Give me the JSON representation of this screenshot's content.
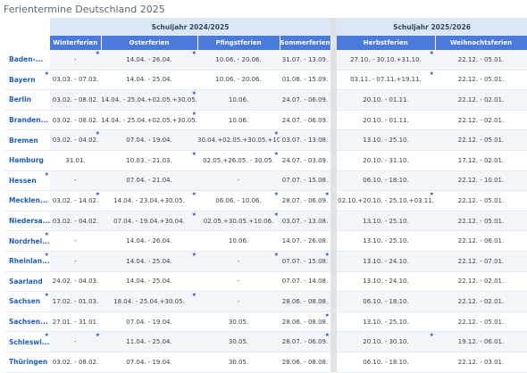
{
  "title": "Ferientermine Deutschland 2025",
  "years": [
    "Schuljahr 2024/2025",
    "Schuljahr 2025/2026"
  ],
  "columns": [
    "Winterferien",
    "Osterferien",
    "Pfingstferien",
    "Sommerferien",
    "Herbstferien",
    "Weihnachtsferien"
  ],
  "rows": [
    {
      "state": "Baden-...",
      "cells": [
        "-",
        "14.04. - 26.04.",
        "10.06. - 20.06.",
        "31.07. - 13.09.",
        "27.10. - 30.10.+31.10.",
        "22.12. - 05.01."
      ]
    },
    {
      "state": "Bayern",
      "cells": [
        "03.03. - 07.03.",
        "14.04. - 25.04.",
        "10.06. - 20.06.",
        "01.08. - 15.09.",
        "03.11. - 07.11.+19.11.",
        "22.12. - 05.01."
      ]
    },
    {
      "state": "Berlin",
      "cells": [
        "03.02. - 08.02.",
        "14.04. - 25.04.+02.05.+30.05.",
        "10.06.",
        "24.07. - 06.09.",
        "20.10. - 01.11.",
        "22.12. - 02.01."
      ]
    },
    {
      "state": "Branden...",
      "cells": [
        "03.02. - 08.02.",
        "14.04. - 25.04.+02.05.+30.05.",
        "10.06.",
        "24.07. - 06.09.",
        "20.10. - 01.11.",
        "22.12. - 02.01."
      ]
    },
    {
      "state": "Bremen",
      "cells": [
        "03.02. - 04.02.",
        "07.04. - 19.04.",
        "30.04.+02.05.+30.05.+10.06.",
        "03.07. - 13.08.",
        "13.10. - 25.10.",
        "22.12. - 05.01."
      ]
    },
    {
      "state": "Hamburg",
      "cells": [
        "31.01.",
        "10.03. - 21.03.",
        "02.05.+26.05. - 30.05.",
        "24.07. - 03.09.",
        "20.10. - 31.10.",
        "17.12. - 02.01."
      ]
    },
    {
      "state": "Hessen",
      "cells": [
        "-",
        "07.04. - 21.04.",
        "-",
        "07.07. - 15.08.",
        "06.10. - 18.10.",
        "22.12. - 10.01."
      ]
    },
    {
      "state": "Mecklen...",
      "cells": [
        "03.02. - 14.02.",
        "14.04. - 23.04.+30.05.",
        "06.06. - 10.06.",
        "28.07. - 06.09.",
        "02.10.+20.10. - 25.10.+03.11.",
        "22.12. - 05.01."
      ]
    },
    {
      "state": "Niedersa...",
      "cells": [
        "03.02. - 04.02.",
        "07.04. - 19.04.+30.04.",
        "02.05.+30.05.+10.06.",
        "03.07. - 13.08.",
        "13.10. - 25.10.",
        "22.12. - 05.01."
      ]
    },
    {
      "state": "Nordrhei...",
      "cells": [
        "-",
        "14.04. - 26.04.",
        "10.06.",
        "14.07. - 26.08.",
        "13.10. - 25.10.",
        "22.12. - 06.01."
      ]
    },
    {
      "state": "Rheinlan...",
      "cells": [
        "-",
        "14.04. - 25.04.",
        "-",
        "07.07. - 15.08.",
        "13.10. - 24.10.",
        "22.12. - 07.01."
      ]
    },
    {
      "state": "Saarland",
      "cells": [
        "24.02. - 04.03.",
        "14.04. - 25.04.",
        "-",
        "07.07. - 14.08.",
        "13.10. - 24.10.",
        "22.12. - 02.01."
      ]
    },
    {
      "state": "Sachsen",
      "cells": [
        "17.02. - 01.03.",
        "18.04. - 25.04.+30.05.",
        "-",
        "28.06. - 08.08.",
        "06.10. - 18.10.",
        "22.12. - 02.01."
      ]
    },
    {
      "state": "Sachsen...",
      "cells": [
        "27.01. - 31.01.",
        "07.04. - 19.04.",
        "30.05.",
        "28.06. - 08.08.",
        "13.10. - 25.10.",
        "22.12. - 05.01."
      ]
    },
    {
      "state": "Schleswi...",
      "cells": [
        "-",
        "11.04. - 25.04.",
        "30.05.",
        "28.07. - 06.09.",
        "20.10. - 30.10.",
        "19.12. - 06.01."
      ]
    },
    {
      "state": "Thüringen",
      "cells": [
        "03.02. - 08.02.",
        "07.04. - 19.04.",
        "30.05.",
        "28.06. - 08.08.",
        "06.10. - 18.10.",
        "22.12. - 03.01."
      ]
    }
  ]
}
